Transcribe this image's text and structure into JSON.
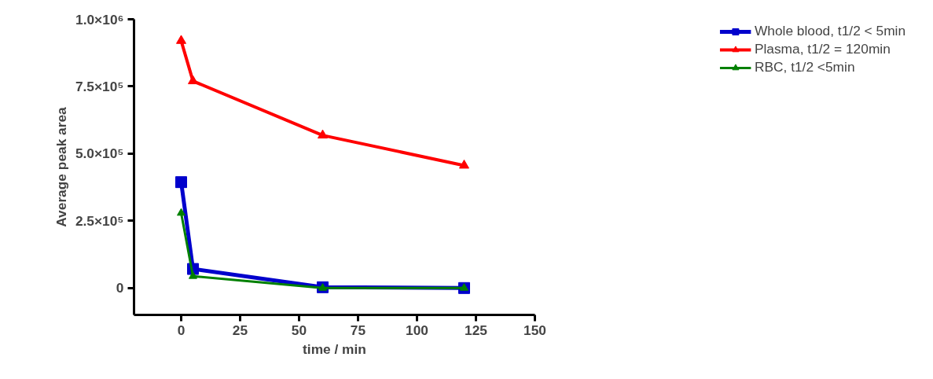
{
  "chart_data": {
    "type": "line",
    "xlabel": "time / min",
    "ylabel": "Average peak area",
    "x": [
      0,
      5,
      60,
      120
    ],
    "series": [
      {
        "name": "Whole blood, t1/2 < 5min",
        "color": "#0000cc",
        "values": [
          394000,
          71000,
          3000,
          0
        ],
        "marker": "square"
      },
      {
        "name": "Plasma, t1/2 = 120min",
        "color": "#ff0000",
        "values": [
          920000,
          770000,
          568000,
          456000
        ],
        "marker": "triangle"
      },
      {
        "name": "RBC, t1/2 <5min",
        "color": "#008000",
        "values": [
          279000,
          44000,
          0,
          0
        ],
        "marker": "triangle"
      }
    ],
    "xlim": [
      -20,
      150
    ],
    "xticks": [
      0,
      25,
      50,
      75,
      100,
      125,
      150
    ],
    "ylim": [
      -100000,
      1000000
    ],
    "yticks": [
      0,
      {
        "value": 250000,
        "label": "2.5×10⁵"
      },
      {
        "value": 500000,
        "label": "5.0×10⁵"
      },
      {
        "value": 750000,
        "label": "7.5×10⁵"
      },
      {
        "value": 1000000,
        "label": "1.0×10⁶"
      }
    ],
    "grid": false,
    "legend": "right",
    "line_style": "solid"
  }
}
